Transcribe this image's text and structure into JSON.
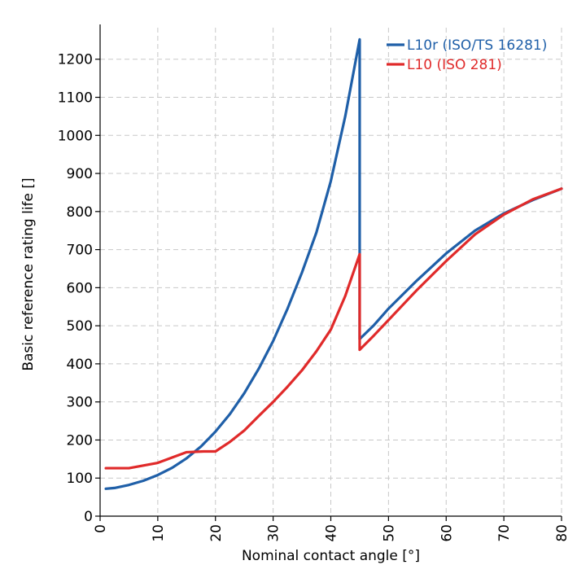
{
  "chart_data": {
    "type": "line",
    "title": "",
    "xlabel": "Nominal contact angle [°]",
    "ylabel": "Basic reference rating life []",
    "xlim": [
      0,
      80
    ],
    "ylim": [
      0,
      1270
    ],
    "xticks": [
      0,
      10,
      20,
      30,
      40,
      50,
      60,
      70,
      80
    ],
    "yticks": [
      0,
      100,
      200,
      300,
      400,
      500,
      600,
      700,
      800,
      900,
      1000,
      1100,
      1200
    ],
    "grid": true,
    "legend_position": "top-right",
    "series": [
      {
        "name": "L10r (ISO/TS 16281)",
        "color": "#1f5fa8",
        "x": [
          1,
          2.5,
          5,
          7.5,
          10,
          12.5,
          15,
          17.5,
          20,
          22.5,
          25,
          27.5,
          30,
          32.5,
          35,
          37.5,
          40,
          42.5,
          45,
          45,
          45,
          47.5,
          50,
          55,
          60,
          65,
          70,
          75,
          80
        ],
        "y": [
          72,
          74,
          82,
          93,
          108,
          127,
          152,
          183,
          222,
          268,
          323,
          387,
          460,
          545,
          640,
          745,
          880,
          1050,
          1252,
          690,
          465,
          502,
          545,
          620,
          690,
          750,
          795,
          830,
          860
        ]
      },
      {
        "name": "L10 (ISO 281)",
        "color": "#e02a2a",
        "x": [
          1,
          5,
          10,
          15,
          18,
          20,
          22.5,
          25,
          27.5,
          30,
          32.5,
          35,
          37.5,
          40,
          42.5,
          45,
          45,
          47.5,
          50,
          55,
          60,
          65,
          70,
          75,
          80
        ],
        "y": [
          126,
          126,
          140,
          168,
          170,
          170,
          195,
          225,
          263,
          300,
          340,
          383,
          433,
          490,
          578,
          688,
          437,
          475,
          515,
          595,
          670,
          740,
          792,
          832,
          860
        ]
      }
    ]
  }
}
